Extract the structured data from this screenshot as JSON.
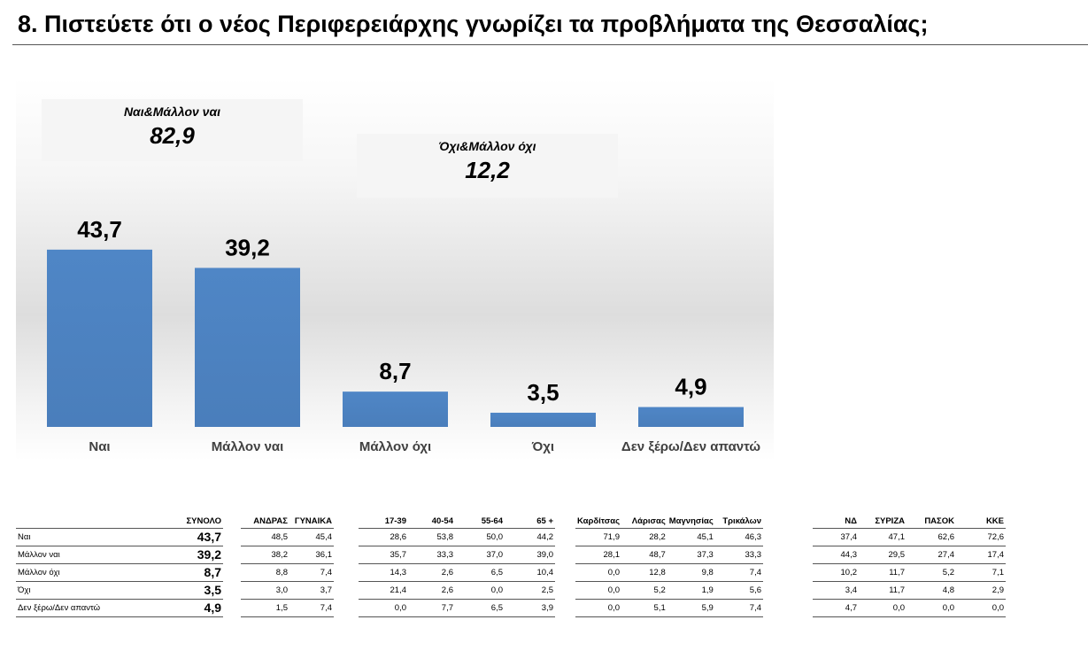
{
  "title": "8. Πιστεύετε ότι ο νέος Περιφερειάρχης γνωρίζει τα προβλήματα της Θεσσαλίας;",
  "summary": {
    "yes_label": "Ναι&Μάλλον ναι",
    "yes_value": "82,9",
    "no_label": "Όχι&Μάλλον όχι",
    "no_value": "12,2"
  },
  "chart_data": {
    "type": "bar",
    "categories": [
      "Ναι",
      "Μάλλον ναι",
      "Μάλλον όχι",
      "Όχι",
      "Δεν ξέρω/Δεν απαντώ"
    ],
    "values": [
      43.7,
      39.2,
      8.7,
      3.5,
      4.9
    ],
    "value_labels": [
      "43,7",
      "39,2",
      "8,7",
      "3,5",
      "4,9"
    ],
    "ylim": [
      0,
      50
    ],
    "bar_color": "#4a7ebb",
    "grid": false,
    "legend": "none"
  },
  "table": {
    "row_labels": [
      "Ναι",
      "Μάλλον ναι",
      "Μάλλον όχι",
      "Όχι",
      "Δεν ξέρω/Δεν απαντώ"
    ],
    "groups": [
      {
        "headers": [
          "ΣΥΝΟΛΟ"
        ],
        "rows": [
          [
            "43,7"
          ],
          [
            "39,2"
          ],
          [
            "8,7"
          ],
          [
            "3,5"
          ],
          [
            "4,9"
          ]
        ]
      },
      {
        "headers": [
          "ΑΝΔΡΑΣ",
          "ΓΥΝΑΙΚΑ"
        ],
        "rows": [
          [
            "48,5",
            "45,4"
          ],
          [
            "38,2",
            "36,1"
          ],
          [
            "8,8",
            "7,4"
          ],
          [
            "3,0",
            "3,7"
          ],
          [
            "1,5",
            "7,4"
          ]
        ]
      },
      {
        "headers": [
          "17-39",
          "40-54",
          "55-64",
          "65 +"
        ],
        "rows": [
          [
            "28,6",
            "53,8",
            "50,0",
            "44,2"
          ],
          [
            "35,7",
            "33,3",
            "37,0",
            "39,0"
          ],
          [
            "14,3",
            "2,6",
            "6,5",
            "10,4"
          ],
          [
            "21,4",
            "2,6",
            "0,0",
            "2,5"
          ],
          [
            "0,0",
            "7,7",
            "6,5",
            "3,9"
          ]
        ]
      },
      {
        "headers": [
          "Καρδίτσας",
          "Λάρισας",
          "Μαγνησίας",
          "Τρικάλων"
        ],
        "rows": [
          [
            "71,9",
            "28,2",
            "45,1",
            "46,3"
          ],
          [
            "28,1",
            "48,7",
            "37,3",
            "33,3"
          ],
          [
            "0,0",
            "12,8",
            "9,8",
            "7,4"
          ],
          [
            "0,0",
            "5,2",
            "1,9",
            "5,6"
          ],
          [
            "0,0",
            "5,1",
            "5,9",
            "7,4"
          ]
        ]
      },
      {
        "headers": [
          "ΝΔ",
          "ΣΥΡΙΖΑ",
          "ΠΑΣΟΚ",
          "ΚΚΕ"
        ],
        "rows": [
          [
            "37,4",
            "47,1",
            "62,6",
            "72,6"
          ],
          [
            "44,3",
            "29,5",
            "27,4",
            "17,4"
          ],
          [
            "10,2",
            "11,7",
            "5,2",
            "7,1"
          ],
          [
            "3,4",
            "11,7",
            "4,8",
            "2,9"
          ],
          [
            "4,7",
            "0,0",
            "0,0",
            "0,0"
          ]
        ]
      }
    ]
  }
}
